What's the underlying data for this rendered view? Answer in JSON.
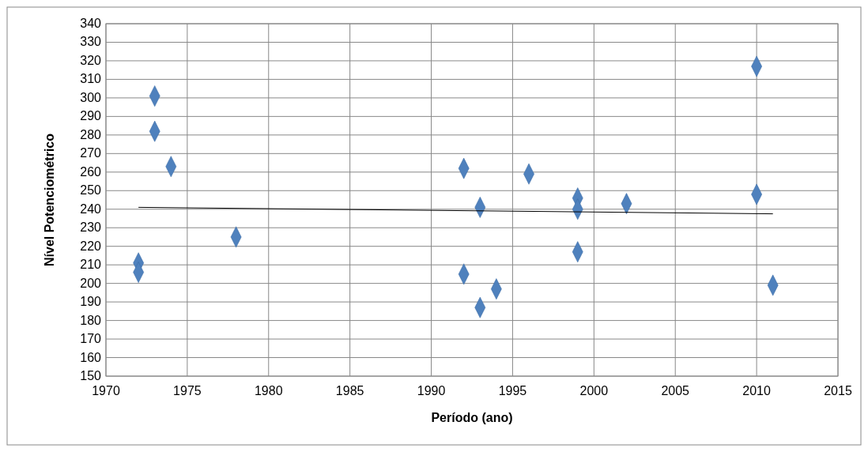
{
  "chart_data": {
    "type": "scatter",
    "xlabel": "Período (ano)",
    "ylabel": "Nível Potenciométrico",
    "xlim": [
      1970,
      2015
    ],
    "xticks": [
      1970,
      1975,
      1980,
      1985,
      1990,
      1995,
      2000,
      2005,
      2010,
      2015
    ],
    "ylim": [
      150,
      340
    ],
    "yticks": [
      150,
      160,
      170,
      180,
      190,
      200,
      210,
      220,
      230,
      240,
      250,
      260,
      270,
      280,
      290,
      300,
      310,
      320,
      330,
      340
    ],
    "grid": true,
    "marker": "diamond",
    "series": [
      {
        "color": "#4f81bd",
        "x": [
          1972,
          1972,
          1973,
          1973,
          1974,
          1978,
          1992,
          1992,
          1993,
          1993,
          1994,
          1996,
          1999,
          1999,
          1999,
          2002,
          2010,
          2010,
          2011
        ],
        "values": [
          211,
          206,
          301,
          282,
          263,
          225,
          262,
          205,
          241,
          187,
          197,
          259,
          246,
          240,
          217,
          243,
          317,
          248,
          199
        ]
      },
      {
        "type": "line",
        "color": "#000000",
        "x": [
          1972,
          2011
        ],
        "values": [
          241,
          237.5
        ],
        "marker": "none"
      }
    ]
  }
}
